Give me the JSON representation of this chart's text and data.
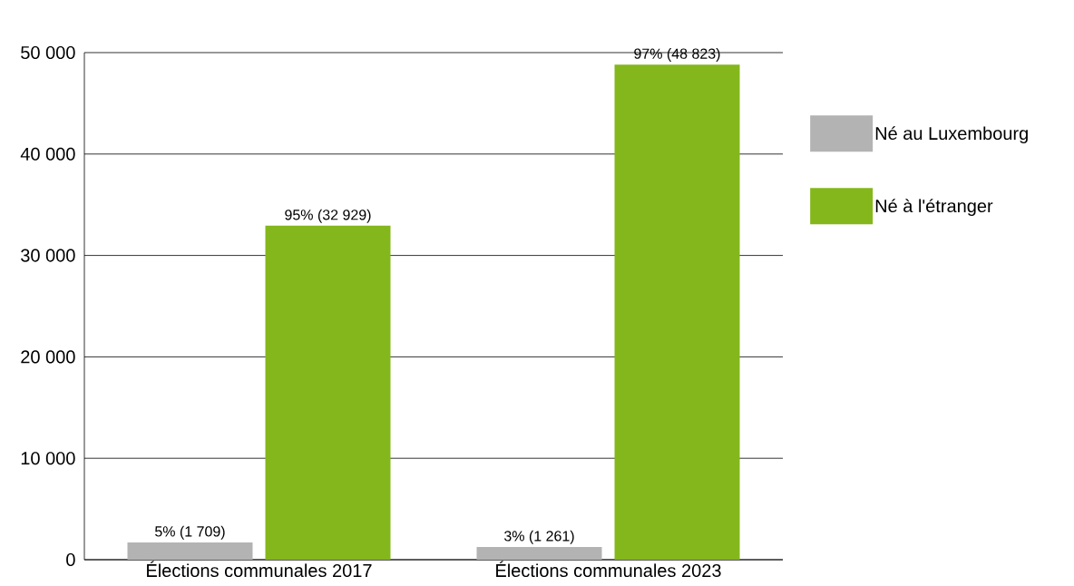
{
  "chart_data": {
    "type": "bar",
    "categories": [
      "Élections communales 2017",
      "Élections communales 2023"
    ],
    "series": [
      {
        "name": "Né au Luxembourg",
        "color": "#b3b3b3",
        "values": [
          1709,
          1261
        ],
        "value_labels": [
          "5% (1 709)",
          "3% (1 261)"
        ]
      },
      {
        "name": "Né à l'étranger",
        "color": "#84b71c",
        "values": [
          32929,
          48823
        ],
        "value_labels": [
          "95% (32 929)",
          "97% (48 823)"
        ]
      }
    ],
    "ylim": [
      0,
      50000
    ],
    "yticks": [
      {
        "value": 0,
        "label": "0"
      },
      {
        "value": 10000,
        "label": "10 000"
      },
      {
        "value": 20000,
        "label": "20 000"
      },
      {
        "value": 30000,
        "label": "30 000"
      },
      {
        "value": 40000,
        "label": "40 000"
      },
      {
        "value": 50000,
        "label": "50 000"
      }
    ],
    "grid": "y",
    "legend": "right"
  }
}
